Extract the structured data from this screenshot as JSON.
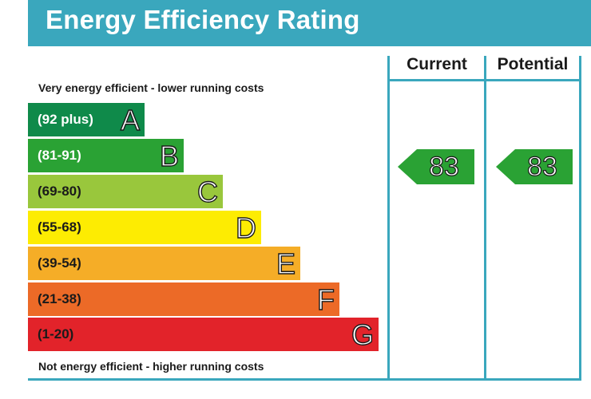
{
  "header": {
    "title": "Energy Efficiency Rating"
  },
  "columns": {
    "current_label": "Current",
    "potential_label": "Potential"
  },
  "captions": {
    "top": "Very energy efficient - lower running costs",
    "bottom": "Not energy efficient - higher running costs"
  },
  "chart_data": {
    "type": "bar",
    "title": "Energy Efficiency Rating",
    "categories": [
      "A",
      "B",
      "C",
      "D",
      "E",
      "F",
      "G"
    ],
    "bands": [
      {
        "letter": "A",
        "range": "(92 plus)",
        "color": "#0f8a4a",
        "text_color": "#ffffff"
      },
      {
        "letter": "B",
        "range": "(81-91)",
        "color": "#2aa234",
        "text_color": "#ffffff"
      },
      {
        "letter": "C",
        "range": "(69-80)",
        "color": "#99c73c",
        "text_color": "#1a1a1a"
      },
      {
        "letter": "D",
        "range": "(55-68)",
        "color": "#fdec02",
        "text_color": "#1a1a1a"
      },
      {
        "letter": "E",
        "range": "(39-54)",
        "color": "#f5ad27",
        "text_color": "#1a1a1a"
      },
      {
        "letter": "F",
        "range": "(21-38)",
        "color": "#ec6a27",
        "text_color": "#1a1a1a"
      },
      {
        "letter": "G",
        "range": "(1-20)",
        "color": "#e2232a",
        "text_color": "#1a1a1a"
      }
    ],
    "current": {
      "value": "83",
      "band": "B",
      "color": "#2aa234"
    },
    "potential": {
      "value": "83",
      "band": "B",
      "color": "#2aa234"
    }
  }
}
